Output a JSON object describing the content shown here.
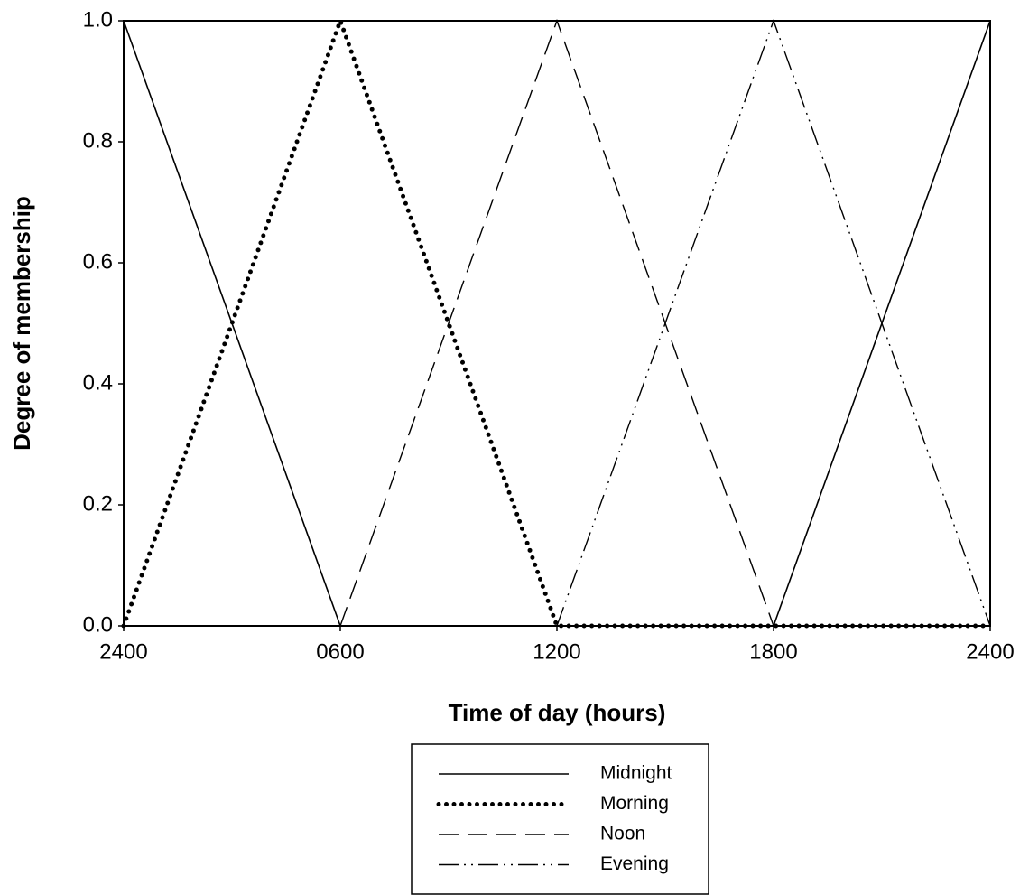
{
  "chart_data": {
    "type": "line",
    "x_label": "Time of day (hours)",
    "y_label": "Degree of membership",
    "x": [
      0,
      6,
      12,
      18,
      24
    ],
    "series": [
      {
        "name": "Midnight",
        "color": "#000000",
        "dash": "solid",
        "values": [
          1,
          0,
          null,
          0,
          1
        ]
      },
      {
        "name": "Morning",
        "color": "#000000",
        "dash": "dotted",
        "values": [
          0,
          1,
          0,
          0,
          0
        ]
      },
      {
        "name": "Noon",
        "color": "#000000",
        "dash": "dashed",
        "values": [
          null,
          0,
          1,
          0,
          null
        ]
      },
      {
        "name": "Evening",
        "color": "#000000",
        "dash": "dash-dot-dot",
        "values": [
          null,
          null,
          0,
          1,
          0
        ]
      }
    ],
    "xlim": [
      0,
      24
    ],
    "xticks": [
      {
        "value": 0,
        "label": "2400"
      },
      {
        "value": 6,
        "label": "0600"
      },
      {
        "value": 12,
        "label": "1200"
      },
      {
        "value": 18,
        "label": "1800"
      },
      {
        "value": 24,
        "label": "2400"
      }
    ],
    "ylim": [
      0,
      1
    ],
    "yticks": [
      {
        "value": 0,
        "label": "0.0"
      },
      0.2,
      0.4,
      0.6,
      0.8,
      {
        "value": 1,
        "label": "1.0"
      }
    ],
    "grid": false,
    "legend": "bottom"
  }
}
